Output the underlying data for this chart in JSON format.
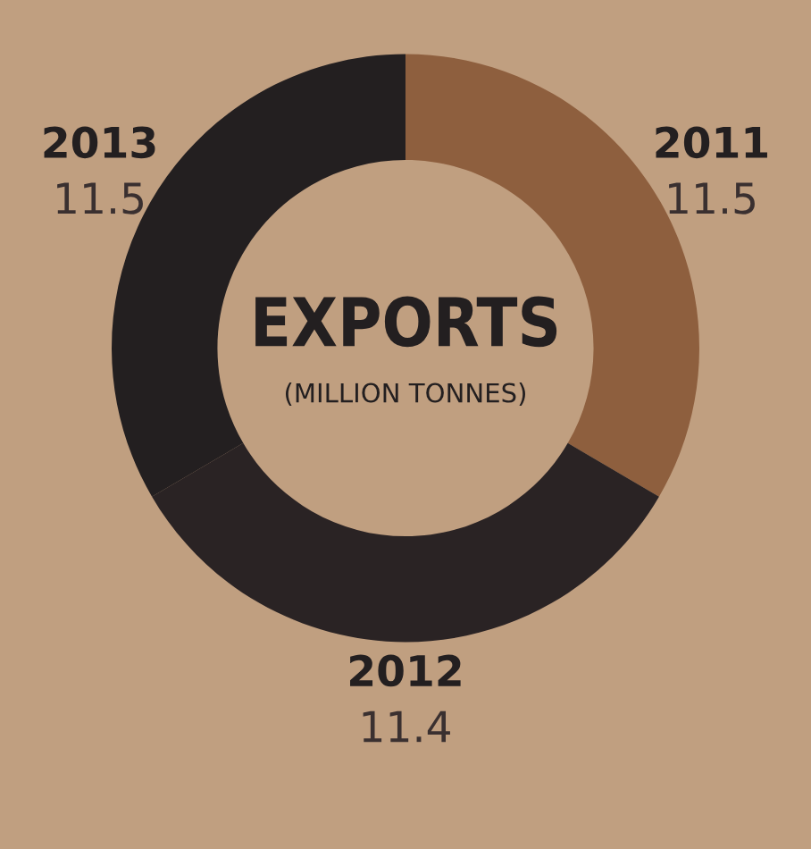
{
  "chart_data": {
    "type": "donut",
    "title": "EXPORTS",
    "subtitle": "(MILLION TONNES)",
    "categories": [
      "2011",
      "2012",
      "2013"
    ],
    "values": [
      11.5,
      11.4,
      11.5
    ],
    "colors": [
      "#8e5f3e",
      "#2a2324",
      "#231f20"
    ],
    "data_labels": true,
    "legend": false
  }
}
